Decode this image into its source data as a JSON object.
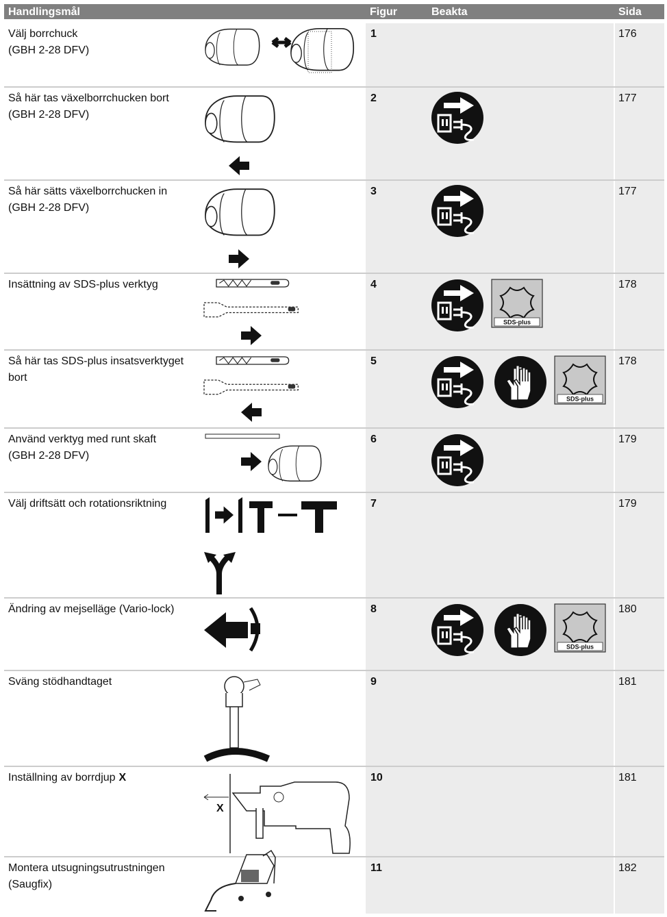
{
  "header": {
    "action": "Handlingsmål",
    "figure": "Figur",
    "notes": "Beakta",
    "page": "Sida"
  },
  "rows": [
    {
      "action": [
        "Välj borrchuck",
        "(GBH 2-28 DFV)"
      ],
      "figure": 1,
      "page": 176
    },
    {
      "action": [
        "Så här tas växelborrchucken bort",
        "(GBH 2-28 DFV)"
      ],
      "figure": 2,
      "page": 177
    },
    {
      "action": [
        "Så här sätts växelborrchucken in",
        "(GBH 2-28 DFV)"
      ],
      "figure": 3,
      "page": 177
    },
    {
      "action": [
        "Insättning av SDS-plus verktyg"
      ],
      "figure": 4,
      "page": 178
    },
    {
      "action": [
        "Så här tas SDS-plus insatsverktyget",
        "bort"
      ],
      "figure": 5,
      "page": 178
    },
    {
      "action": [
        "Använd verktyg med runt skaft",
        "(GBH 2-28 DFV)"
      ],
      "figure": 6,
      "page": 179
    },
    {
      "action": [
        "Välj driftsätt och rotationsriktning"
      ],
      "figure": 7,
      "page": 179
    },
    {
      "action": [
        "Ändring av mejselläge (Vario-lock)"
      ],
      "figure": 8,
      "page": 180
    },
    {
      "action": [
        "Sväng stödhandtaget"
      ],
      "figure": 9,
      "page": 181
    },
    {
      "action": [
        "Inställning av borrdjup"
      ],
      "action_emphasis": "X",
      "figure": 10,
      "page": 181
    },
    {
      "action": [
        "Montera utsugningsutrustningen",
        "(Saugfix)"
      ],
      "figure": 11,
      "page": 182
    }
  ],
  "icon_labels": {
    "sds": "SDS-plus",
    "depth": "X"
  }
}
